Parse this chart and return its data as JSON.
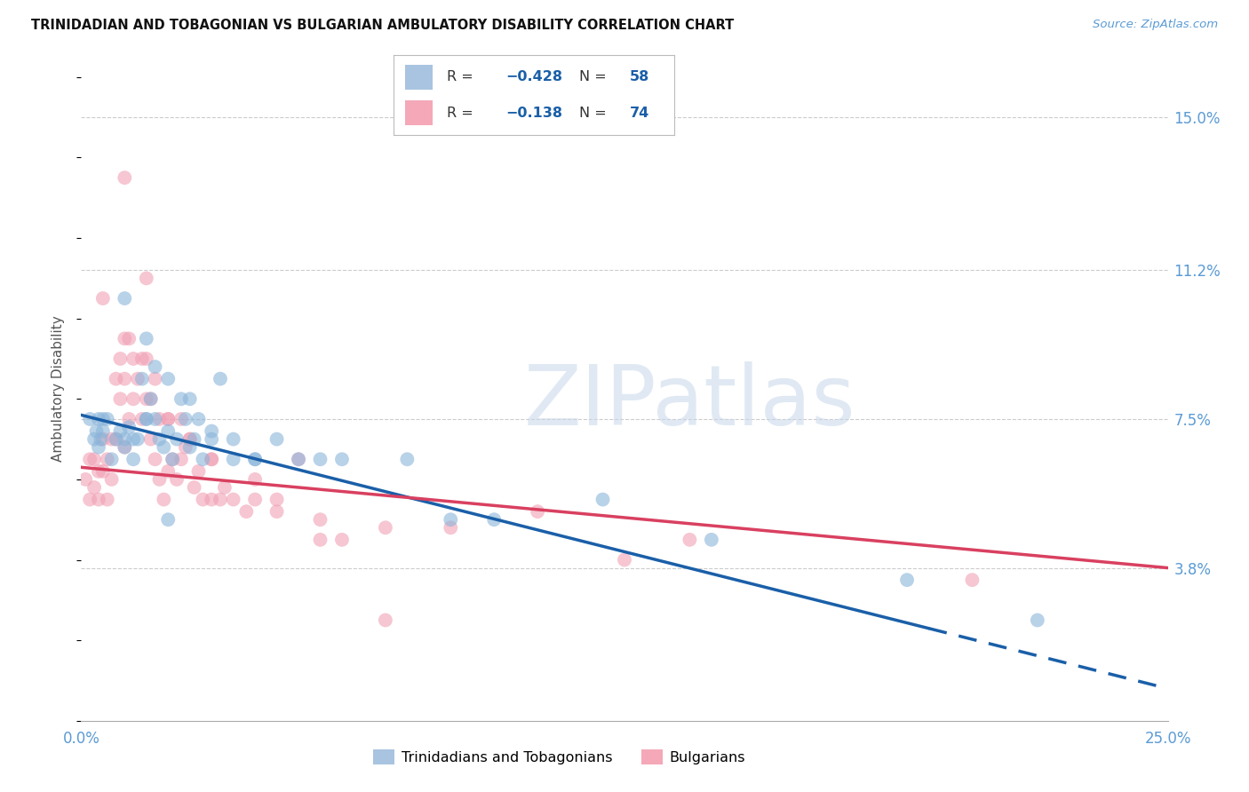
{
  "title": "TRINIDADIAN AND TOBAGONIAN VS BULGARIAN AMBULATORY DISABILITY CORRELATION CHART",
  "source": "Source: ZipAtlas.com",
  "ylabel": "Ambulatory Disability",
  "xlim": [
    0.0,
    25.0
  ],
  "ylim": [
    0.0,
    16.5
  ],
  "ytick_positions": [
    3.8,
    7.5,
    11.2,
    15.0
  ],
  "ytick_labels": [
    "3.8%",
    "7.5%",
    "11.2%",
    "15.0%"
  ],
  "blue_color": "#8ab4d9",
  "pink_color": "#f0a0b4",
  "blue_line_color": "#1a5fa8",
  "pink_line_color": "#d94060",
  "watermark_color": "#c8d8ea",
  "watermark": "ZIPatlas",
  "blue_line_x0": 0.0,
  "blue_line_y0": 7.6,
  "blue_line_x1": 25.0,
  "blue_line_y1": 0.8,
  "blue_solid_end": 19.5,
  "pink_line_x0": 0.0,
  "pink_line_y0": 6.3,
  "pink_line_x1": 25.0,
  "pink_line_y1": 3.8,
  "blue_scatter_x": [
    0.2,
    0.3,
    0.35,
    0.4,
    0.4,
    0.45,
    0.5,
    0.5,
    0.6,
    0.7,
    0.8,
    0.9,
    1.0,
    1.0,
    1.1,
    1.2,
    1.2,
    1.3,
    1.4,
    1.5,
    1.5,
    1.6,
    1.7,
    1.7,
    1.8,
    1.9,
    2.0,
    2.0,
    2.1,
    2.2,
    2.3,
    2.4,
    2.5,
    2.6,
    2.7,
    2.8,
    3.0,
    3.2,
    3.5,
    4.0,
    4.5,
    5.5,
    6.0,
    7.5,
    8.5,
    9.5,
    12.0,
    14.5,
    19.0,
    22.0,
    1.0,
    1.5,
    2.0,
    2.5,
    3.0,
    3.5,
    4.0,
    5.0
  ],
  "blue_scatter_y": [
    7.5,
    7.0,
    7.2,
    7.5,
    6.8,
    7.0,
    7.5,
    7.2,
    7.5,
    6.5,
    7.0,
    7.2,
    7.0,
    6.8,
    7.3,
    6.5,
    7.0,
    7.0,
    8.5,
    9.5,
    7.5,
    8.0,
    7.5,
    8.8,
    7.0,
    6.8,
    7.2,
    8.5,
    6.5,
    7.0,
    8.0,
    7.5,
    8.0,
    7.0,
    7.5,
    6.5,
    7.0,
    8.5,
    7.0,
    6.5,
    7.0,
    6.5,
    6.5,
    6.5,
    5.0,
    5.0,
    5.5,
    4.5,
    3.5,
    2.5,
    10.5,
    7.5,
    5.0,
    6.8,
    7.2,
    6.5,
    6.5,
    6.5
  ],
  "pink_scatter_x": [
    0.1,
    0.2,
    0.2,
    0.3,
    0.3,
    0.4,
    0.4,
    0.5,
    0.5,
    0.6,
    0.6,
    0.7,
    0.7,
    0.8,
    0.8,
    0.9,
    0.9,
    1.0,
    1.0,
    1.0,
    1.1,
    1.1,
    1.2,
    1.2,
    1.3,
    1.4,
    1.4,
    1.5,
    1.5,
    1.6,
    1.6,
    1.7,
    1.7,
    1.8,
    1.8,
    1.9,
    2.0,
    2.0,
    2.1,
    2.2,
    2.3,
    2.3,
    2.4,
    2.5,
    2.6,
    2.7,
    2.8,
    3.0,
    3.0,
    3.2,
    3.3,
    3.5,
    3.8,
    4.0,
    4.0,
    4.5,
    5.0,
    5.5,
    6.0,
    7.0,
    8.5,
    10.5,
    12.5,
    14.0,
    20.5,
    0.5,
    1.0,
    1.5,
    2.0,
    2.5,
    3.0,
    4.5,
    5.5,
    7.0
  ],
  "pink_scatter_y": [
    6.0,
    5.5,
    6.5,
    6.5,
    5.8,
    5.5,
    6.2,
    6.2,
    7.0,
    5.5,
    6.5,
    6.0,
    7.0,
    7.0,
    8.5,
    9.0,
    8.0,
    9.5,
    6.8,
    8.5,
    9.5,
    7.5,
    8.0,
    9.0,
    8.5,
    7.5,
    9.0,
    8.0,
    9.0,
    7.0,
    8.0,
    6.5,
    8.5,
    6.0,
    7.5,
    5.5,
    6.2,
    7.5,
    6.5,
    6.0,
    7.5,
    6.5,
    6.8,
    7.0,
    5.8,
    6.2,
    5.5,
    6.5,
    5.5,
    5.5,
    5.8,
    5.5,
    5.2,
    6.0,
    5.5,
    5.5,
    6.5,
    5.0,
    4.5,
    4.8,
    4.8,
    5.2,
    4.0,
    4.5,
    3.5,
    10.5,
    13.5,
    11.0,
    7.5,
    7.0,
    6.5,
    5.2,
    4.5,
    2.5
  ]
}
